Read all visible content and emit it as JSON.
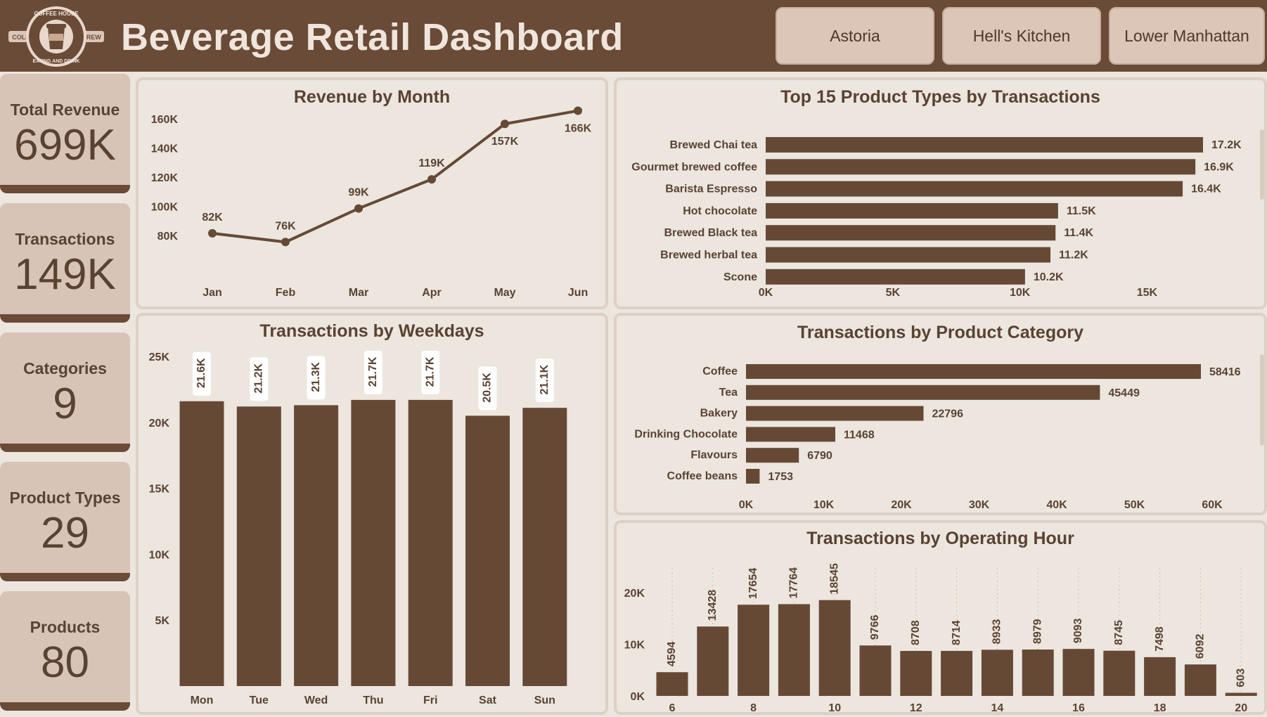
{
  "header": {
    "title": "Beverage Retail Dashboard",
    "logo": {
      "top_text": "COFFEE HOUSE",
      "bottom_text": "EATING AND DRINK",
      "left_text": "COLD",
      "right_text": "BREW"
    },
    "stores": [
      "Astoria",
      "Hell's Kitchen",
      "Lower Manhattan"
    ]
  },
  "kpis": [
    {
      "label": "Total Revenue",
      "value": "699K"
    },
    {
      "label": "Transactions",
      "value": "149K"
    },
    {
      "label": "Categories",
      "value": "9"
    },
    {
      "label": "Product Types",
      "value": "29"
    },
    {
      "label": "Products",
      "value": "80"
    }
  ],
  "colors": {
    "bar": "#664935",
    "header": "#6a4b37",
    "panel": "#ece6df",
    "kpi": "#d8c4b6"
  },
  "chart_data": [
    {
      "id": "revenue_by_month",
      "type": "line",
      "title": "Revenue by Month",
      "categories": [
        "Jan",
        "Feb",
        "Mar",
        "Apr",
        "May",
        "Jun"
      ],
      "values": [
        82000,
        76000,
        99000,
        119000,
        157000,
        166000
      ],
      "labels": [
        "82K",
        "76K",
        "99K",
        "119K",
        "157K",
        "166K"
      ],
      "yticks": [
        "80K",
        "100K",
        "120K",
        "140K",
        "160K"
      ],
      "ytick_values": [
        80000,
        100000,
        120000,
        140000,
        160000
      ]
    },
    {
      "id": "top_product_types",
      "type": "bar",
      "orientation": "horizontal",
      "title": "Top 15 Product Types by Transactions",
      "categories": [
        "Brewed Chai tea",
        "Gourmet brewed coffee",
        "Barista Espresso",
        "Hot chocolate",
        "Brewed Black tea",
        "Brewed herbal tea",
        "Scone"
      ],
      "values": [
        17200,
        16900,
        16400,
        11500,
        11400,
        11200,
        10200
      ],
      "labels": [
        "17.2K",
        "16.9K",
        "16.4K",
        "11.5K",
        "11.4K",
        "11.2K",
        "10.2K"
      ],
      "xticks": [
        "0K",
        "5K",
        "10K",
        "15K"
      ],
      "xtick_values": [
        0,
        5000,
        10000,
        15000
      ]
    },
    {
      "id": "transactions_by_weekday",
      "type": "bar",
      "title": "Transactions by Weekdays",
      "categories": [
        "Mon",
        "Tue",
        "Wed",
        "Thu",
        "Fri",
        "Sat",
        "Sun"
      ],
      "values": [
        21600,
        21200,
        21300,
        21700,
        21700,
        20500,
        21100
      ],
      "labels": [
        "21.6K",
        "21.2K",
        "21.3K",
        "21.7K",
        "21.7K",
        "20.5K",
        "21.1K"
      ],
      "yticks": [
        "5K",
        "10K",
        "15K",
        "20K",
        "25K"
      ],
      "ytick_values": [
        5000,
        10000,
        15000,
        20000,
        25000
      ]
    },
    {
      "id": "transactions_by_category",
      "type": "bar",
      "orientation": "horizontal",
      "title": "Transactions by Product Category",
      "categories": [
        "Coffee",
        "Tea",
        "Bakery",
        "Drinking Chocolate",
        "Flavours",
        "Coffee beans"
      ],
      "values": [
        58416,
        45449,
        22796,
        11468,
        6790,
        1753
      ],
      "labels": [
        "58416",
        "45449",
        "22796",
        "11468",
        "6790",
        "1753"
      ],
      "xticks": [
        "0K",
        "10K",
        "20K",
        "30K",
        "40K",
        "50K",
        "60K"
      ],
      "xtick_values": [
        0,
        10000,
        20000,
        30000,
        40000,
        50000,
        60000
      ]
    },
    {
      "id": "transactions_by_hour",
      "type": "bar",
      "title": "Transactions by Operating Hour",
      "categories": [
        "6",
        "7",
        "8",
        "9",
        "10",
        "11",
        "12",
        "13",
        "14",
        "15",
        "16",
        "17",
        "18",
        "19",
        "20"
      ],
      "values": [
        4594,
        13428,
        17654,
        17764,
        18545,
        9766,
        8708,
        8714,
        8933,
        8979,
        9093,
        8745,
        7498,
        6092,
        603
      ],
      "labels": [
        "4594",
        "13428",
        "17654",
        "17764",
        "18545",
        "9766",
        "8708",
        "8714",
        "8933",
        "8979",
        "9093",
        "8745",
        "7498",
        "6092",
        "603"
      ],
      "xtick_labels": [
        "6",
        "",
        "8",
        "",
        "10",
        "",
        "12",
        "",
        "14",
        "",
        "16",
        "",
        "18",
        "",
        "20"
      ],
      "yticks": [
        "0K",
        "10K",
        "20K"
      ],
      "ytick_values": [
        0,
        10000,
        20000
      ]
    }
  ]
}
